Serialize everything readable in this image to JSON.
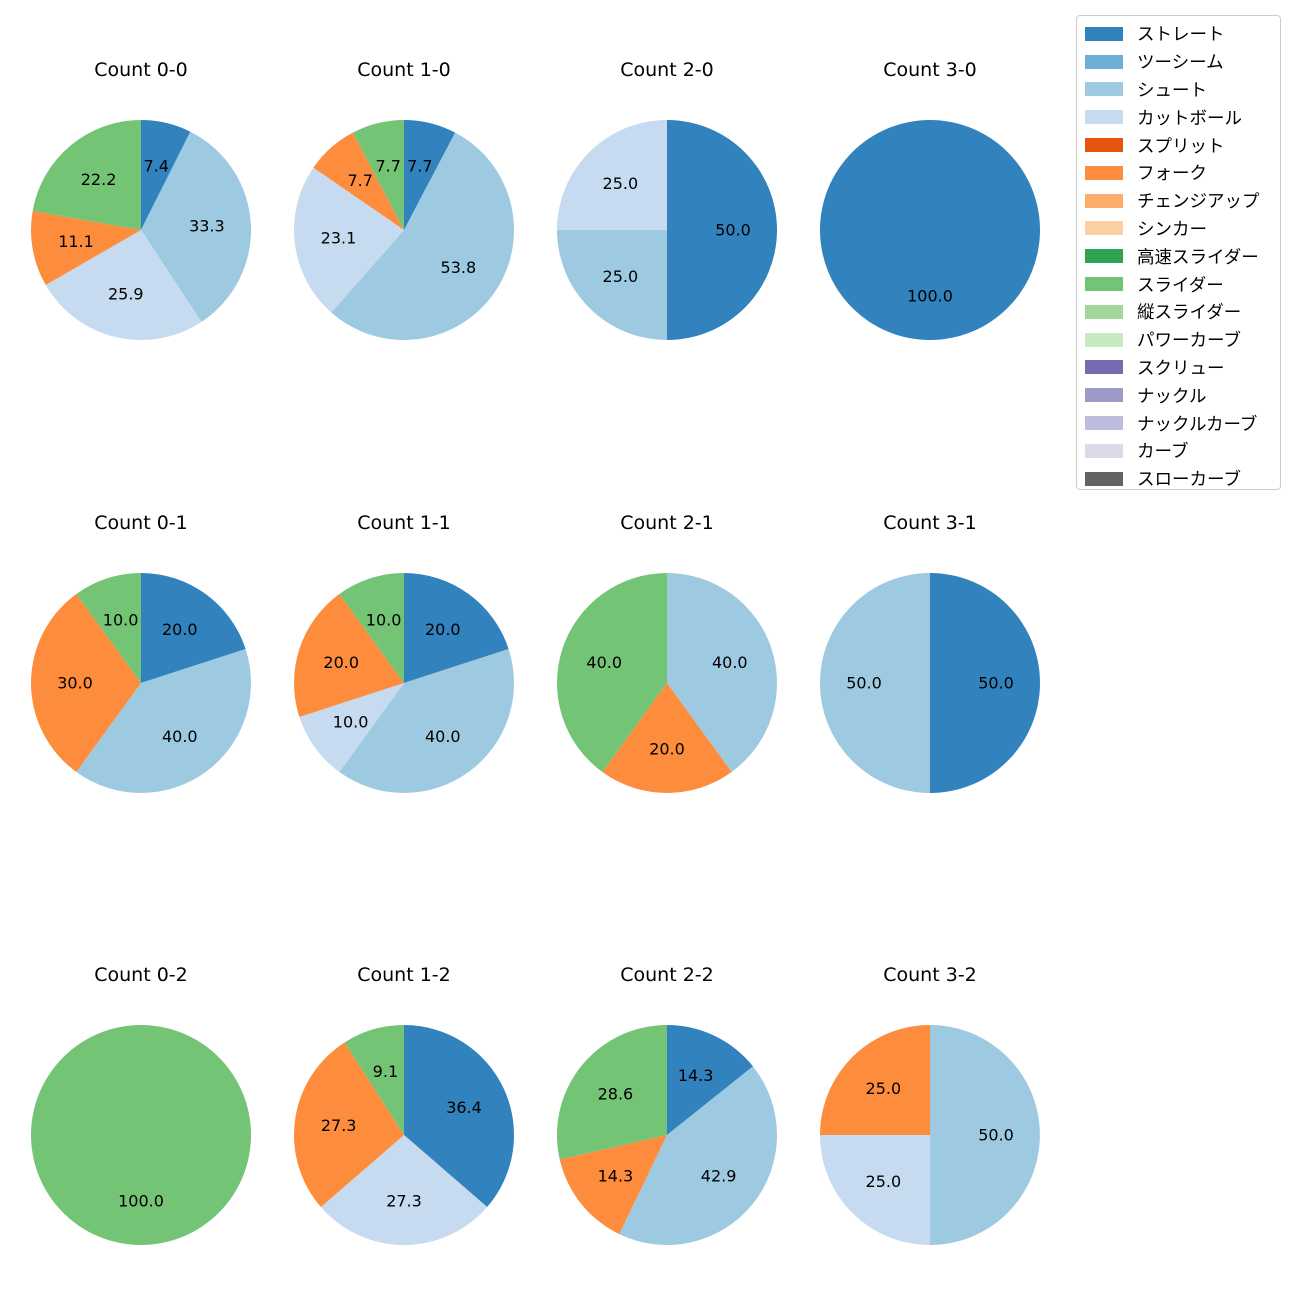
{
  "legend": {
    "items": [
      {
        "label": "ストレート",
        "color": "#3182bd"
      },
      {
        "label": "ツーシーム",
        "color": "#6baed6"
      },
      {
        "label": "シュート",
        "color": "#9ecae1"
      },
      {
        "label": "カットボール",
        "color": "#c6dbef"
      },
      {
        "label": "スプリット",
        "color": "#e6550d"
      },
      {
        "label": "フォーク",
        "color": "#fd8d3c"
      },
      {
        "label": "チェンジアップ",
        "color": "#fdae6b"
      },
      {
        "label": "シンカー",
        "color": "#fdd0a2"
      },
      {
        "label": "高速スライダー",
        "color": "#31a354"
      },
      {
        "label": "スライダー",
        "color": "#74c476"
      },
      {
        "label": "縦スライダー",
        "color": "#a1d99b"
      },
      {
        "label": "パワーカーブ",
        "color": "#c7e9c0"
      },
      {
        "label": "スクリュー",
        "color": "#756bb1"
      },
      {
        "label": "ナックル",
        "color": "#9e9ac8"
      },
      {
        "label": "ナックルカーブ",
        "color": "#bcbddc"
      },
      {
        "label": "カーブ",
        "color": "#dadaeb"
      },
      {
        "label": "スローカーブ",
        "color": "#636363"
      }
    ]
  },
  "chart_data": [
    {
      "type": "pie",
      "title": "Count 0-0",
      "slices": [
        {
          "category": "ストレート",
          "value": 7.4
        },
        {
          "category": "シュート",
          "value": 33.3
        },
        {
          "category": "カットボール",
          "value": 25.9
        },
        {
          "category": "フォーク",
          "value": 11.1
        },
        {
          "category": "スライダー",
          "value": 22.2
        }
      ]
    },
    {
      "type": "pie",
      "title": "Count 1-0",
      "slices": [
        {
          "category": "ストレート",
          "value": 7.7
        },
        {
          "category": "シュート",
          "value": 53.8
        },
        {
          "category": "カットボール",
          "value": 23.1
        },
        {
          "category": "フォーク",
          "value": 7.7
        },
        {
          "category": "スライダー",
          "value": 7.7
        }
      ]
    },
    {
      "type": "pie",
      "title": "Count 2-0",
      "slices": [
        {
          "category": "ストレート",
          "value": 50.0
        },
        {
          "category": "シュート",
          "value": 25.0
        },
        {
          "category": "カットボール",
          "value": 25.0
        }
      ]
    },
    {
      "type": "pie",
      "title": "Count 3-0",
      "slices": [
        {
          "category": "ストレート",
          "value": 100.0
        }
      ]
    },
    {
      "type": "pie",
      "title": "Count 0-1",
      "slices": [
        {
          "category": "ストレート",
          "value": 20.0
        },
        {
          "category": "シュート",
          "value": 40.0
        },
        {
          "category": "フォーク",
          "value": 30.0
        },
        {
          "category": "スライダー",
          "value": 10.0
        }
      ]
    },
    {
      "type": "pie",
      "title": "Count 1-1",
      "slices": [
        {
          "category": "ストレート",
          "value": 20.0
        },
        {
          "category": "シュート",
          "value": 40.0
        },
        {
          "category": "カットボール",
          "value": 10.0
        },
        {
          "category": "フォーク",
          "value": 20.0
        },
        {
          "category": "スライダー",
          "value": 10.0
        }
      ]
    },
    {
      "type": "pie",
      "title": "Count 2-1",
      "slices": [
        {
          "category": "シュート",
          "value": 40.0
        },
        {
          "category": "フォーク",
          "value": 20.0
        },
        {
          "category": "スライダー",
          "value": 40.0
        }
      ]
    },
    {
      "type": "pie",
      "title": "Count 3-1",
      "slices": [
        {
          "category": "ストレート",
          "value": 50.0
        },
        {
          "category": "シュート",
          "value": 50.0
        }
      ]
    },
    {
      "type": "pie",
      "title": "Count 0-2",
      "slices": [
        {
          "category": "スライダー",
          "value": 100.0
        }
      ]
    },
    {
      "type": "pie",
      "title": "Count 1-2",
      "slices": [
        {
          "category": "ストレート",
          "value": 36.4
        },
        {
          "category": "カットボール",
          "value": 27.3
        },
        {
          "category": "フォーク",
          "value": 27.3
        },
        {
          "category": "スライダー",
          "value": 9.1
        }
      ]
    },
    {
      "type": "pie",
      "title": "Count 2-2",
      "slices": [
        {
          "category": "ストレート",
          "value": 14.3
        },
        {
          "category": "シュート",
          "value": 42.9
        },
        {
          "category": "フォーク",
          "value": 14.3
        },
        {
          "category": "スライダー",
          "value": 28.6
        }
      ]
    },
    {
      "type": "pie",
      "title": "Count 3-2",
      "slices": [
        {
          "category": "シュート",
          "value": 50.0
        },
        {
          "category": "カットボール",
          "value": 25.0
        },
        {
          "category": "フォーク",
          "value": 25.0
        }
      ]
    }
  ]
}
